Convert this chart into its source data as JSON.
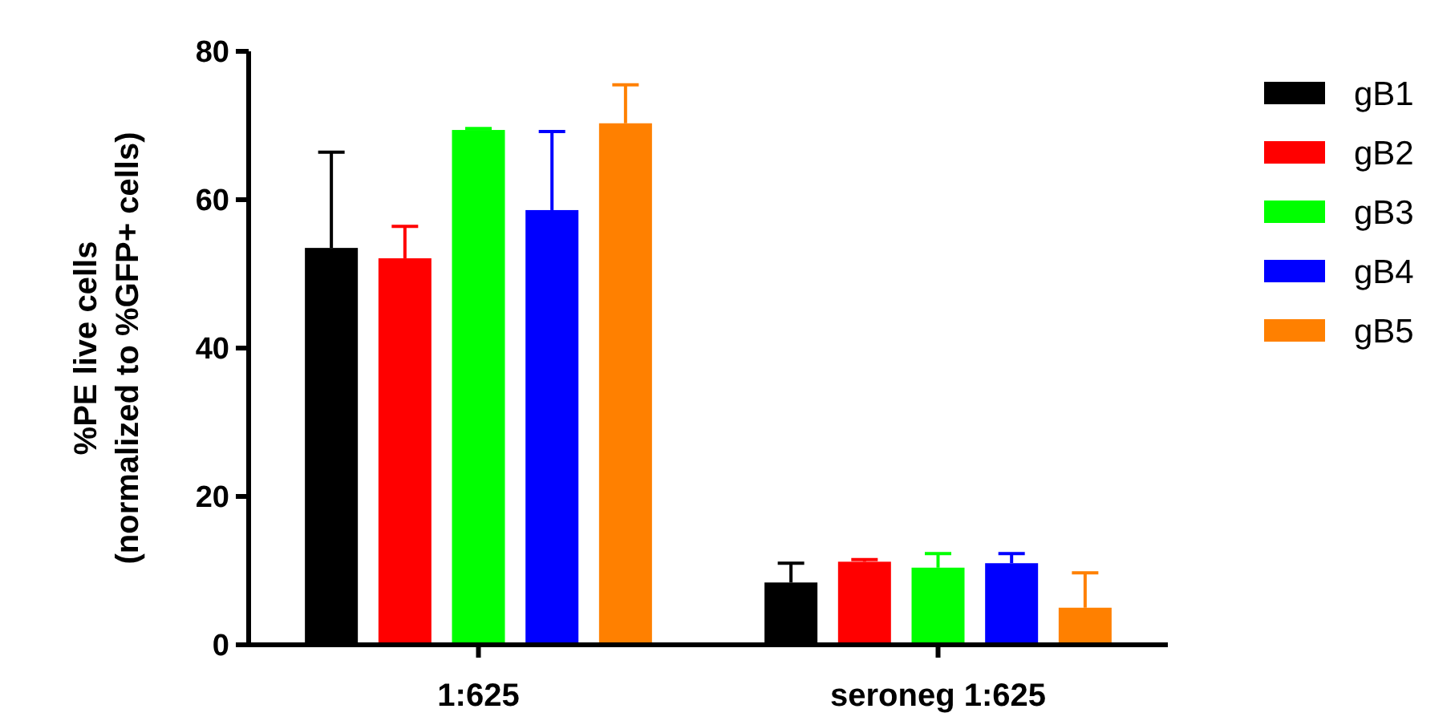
{
  "chart_data": {
    "type": "bar",
    "ylabel": "%PE live cells\n(normalized to %GFP+ cells)",
    "categories": [
      "1:625",
      "seroneg 1:625"
    ],
    "series": [
      {
        "name": "gB1",
        "color": "#000000",
        "values": [
          53.5,
          8.4
        ],
        "errors": [
          [
            53.5,
            66.4
          ],
          [
            8.4,
            11
          ]
        ]
      },
      {
        "name": "gB2",
        "color": "#ff0000",
        "values": [
          52.1,
          11.2
        ],
        "errors": [
          [
            52.1,
            56.4
          ],
          [
            11.2,
            11.5
          ]
        ]
      },
      {
        "name": "gB3",
        "color": "#00ff00",
        "values": [
          69.4,
          10.4
        ],
        "errors": [
          [
            69.4,
            69.6
          ],
          [
            10.4,
            12.3
          ]
        ]
      },
      {
        "name": "gB4",
        "color": "#0000ff",
        "values": [
          58.6,
          11
        ],
        "errors": [
          [
            58.6,
            69.2
          ],
          [
            11,
            12.3
          ]
        ]
      },
      {
        "name": "gB5",
        "color": "#ff8000",
        "values": [
          70.3,
          5
        ],
        "errors": [
          [
            70.3,
            75.5
          ],
          [
            5,
            9.7
          ]
        ]
      }
    ],
    "ylim": [
      0,
      80
    ],
    "yticks": [
      0,
      20,
      40,
      60,
      80
    ],
    "grid": false,
    "legend": "right"
  }
}
